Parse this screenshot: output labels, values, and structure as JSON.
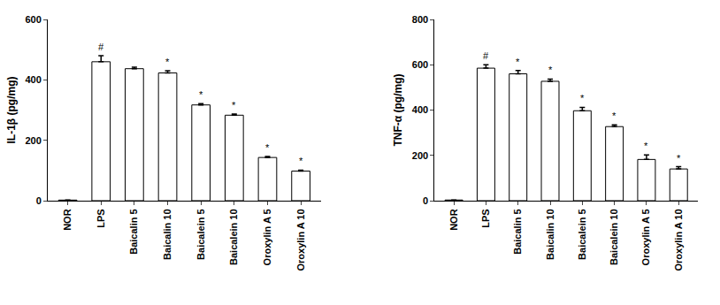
{
  "chart_data": [
    {
      "type": "bar",
      "y_label": "IL-1β (pg/mg)",
      "categories": [
        "NOR",
        "LPS",
        "Baicalin 5",
        "Baicalin 10",
        "Baicalein 5",
        "Baicalein 10",
        "Oroxylin A 5",
        "Oroxylin A 10"
      ],
      "values": [
        2,
        460,
        437,
        423,
        317,
        283,
        143,
        98
      ],
      "errors": [
        0,
        20,
        5,
        7,
        4,
        4,
        3,
        3
      ],
      "color": "#ffffff",
      "ylim": [
        0,
        600
      ],
      "yticks": [
        0,
        200,
        400,
        600
      ],
      "grid": false,
      "annotations": [
        {
          "category": "LPS",
          "text": "#"
        },
        {
          "category": "Baicalin 10",
          "text": "*"
        },
        {
          "category": "Baicalein 5",
          "text": "*"
        },
        {
          "category": "Baicalein 10",
          "text": "*"
        },
        {
          "category": "Oroxylin A 5",
          "text": "*"
        },
        {
          "category": "Oroxylin A 10",
          "text": "*"
        }
      ]
    },
    {
      "type": "bar",
      "y_label": "TNF-α (pg/mg)",
      "categories": [
        "NOR",
        "LPS",
        "Baicalin 5",
        "Baicalin 10",
        "Baicalein 5",
        "Baicalein 10",
        "Oroxylin A 5",
        "Oroxylin A 10"
      ],
      "values": [
        3,
        585,
        560,
        527,
        397,
        327,
        182,
        140
      ],
      "errors": [
        0,
        15,
        15,
        10,
        15,
        8,
        20,
        10
      ],
      "color": "#ffffff",
      "ylim": [
        0,
        800
      ],
      "yticks": [
        0,
        200,
        400,
        600,
        800
      ],
      "grid": false,
      "annotations": [
        {
          "category": "LPS",
          "text": "#"
        },
        {
          "category": "Baicalin 5",
          "text": "*"
        },
        {
          "category": "Baicalin 10",
          "text": "*"
        },
        {
          "category": "Baicalein 5",
          "text": "*"
        },
        {
          "category": "Baicalein 10",
          "text": "*"
        },
        {
          "category": "Oroxylin A 5",
          "text": "*"
        },
        {
          "category": "Oroxylin A 10",
          "text": "*"
        }
      ]
    }
  ]
}
